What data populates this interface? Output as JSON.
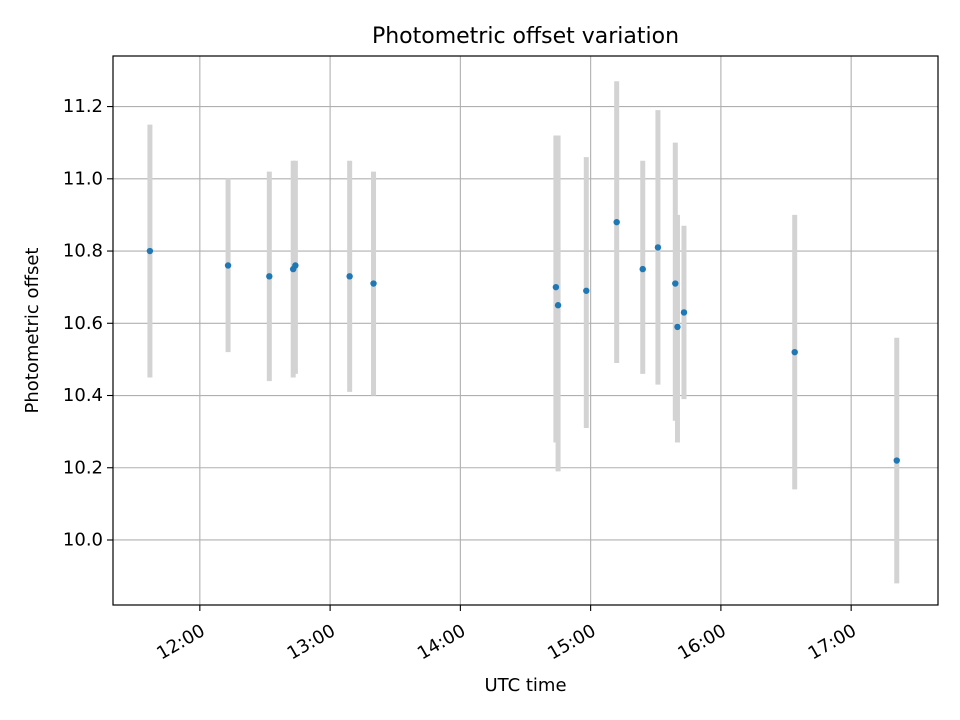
{
  "chart_data": {
    "type": "scatter",
    "title": "Photometric offset variation",
    "xlabel": "UTC time",
    "ylabel": "Photometric offset",
    "x_axis_kind": "time",
    "x_ticks": [
      "12:00",
      "13:00",
      "14:00",
      "15:00",
      "16:00",
      "17:00"
    ],
    "y_ticks": [
      "10.0",
      "10.2",
      "10.4",
      "10.6",
      "10.8",
      "11.0",
      "11.2"
    ],
    "xlim": [
      "11:20",
      "17:40"
    ],
    "ylim": [
      9.82,
      11.34
    ],
    "grid": true,
    "colors": {
      "point": "#1f77b4",
      "errorbar": "#d3d3d3",
      "grid": "#b0b0b0"
    },
    "series": [
      {
        "points": [
          {
            "x": "11:37",
            "y": 10.8,
            "ylow": 10.45,
            "yhigh": 11.15
          },
          {
            "x": "12:13",
            "y": 10.76,
            "ylow": 10.52,
            "yhigh": 11.0
          },
          {
            "x": "12:32",
            "y": 10.73,
            "ylow": 10.44,
            "yhigh": 11.02
          },
          {
            "x": "12:43",
            "y": 10.75,
            "ylow": 10.45,
            "yhigh": 11.05
          },
          {
            "x": "12:44",
            "y": 10.76,
            "ylow": 10.46,
            "yhigh": 11.05
          },
          {
            "x": "13:09",
            "y": 10.73,
            "ylow": 10.41,
            "yhigh": 11.05
          },
          {
            "x": "13:20",
            "y": 10.71,
            "ylow": 10.4,
            "yhigh": 11.02
          },
          {
            "x": "14:44",
            "y": 10.7,
            "ylow": 10.27,
            "yhigh": 11.12
          },
          {
            "x": "14:45",
            "y": 10.65,
            "ylow": 10.19,
            "yhigh": 11.12
          },
          {
            "x": "14:58",
            "y": 10.69,
            "ylow": 10.31,
            "yhigh": 11.06
          },
          {
            "x": "15:12",
            "y": 10.88,
            "ylow": 10.49,
            "yhigh": 11.27
          },
          {
            "x": "15:24",
            "y": 10.75,
            "ylow": 10.46,
            "yhigh": 11.05
          },
          {
            "x": "15:31",
            "y": 10.81,
            "ylow": 10.43,
            "yhigh": 11.19
          },
          {
            "x": "15:39",
            "y": 10.71,
            "ylow": 10.33,
            "yhigh": 11.1
          },
          {
            "x": "15:40",
            "y": 10.59,
            "ylow": 10.27,
            "yhigh": 10.9
          },
          {
            "x": "15:43",
            "y": 10.63,
            "ylow": 10.39,
            "yhigh": 10.87
          },
          {
            "x": "16:34",
            "y": 10.52,
            "ylow": 10.14,
            "yhigh": 10.9
          },
          {
            "x": "17:21",
            "y": 10.22,
            "ylow": 9.88,
            "yhigh": 10.56
          }
        ]
      }
    ]
  }
}
